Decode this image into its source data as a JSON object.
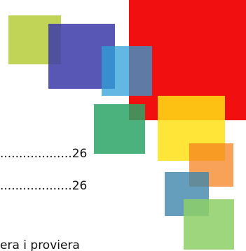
{
  "toc": {
    "entries": [
      {
        "leader": "...................",
        "page": "26"
      },
      {
        "leader": "...................",
        "page": "26"
      }
    ],
    "partial_text": "era i proviera"
  },
  "decoration": {
    "name": "overlapping-colored-squares",
    "colors": {
      "olive": "#b7cc3a",
      "indigo": "#3c3aa8",
      "sky": "#2ea0d8",
      "red": "#f20f0f",
      "green": "#2ca566",
      "yellow": "#ffe014",
      "orange": "#f58220",
      "teal": "#3e86ab",
      "lightgreen": "#8ccf66"
    }
  }
}
